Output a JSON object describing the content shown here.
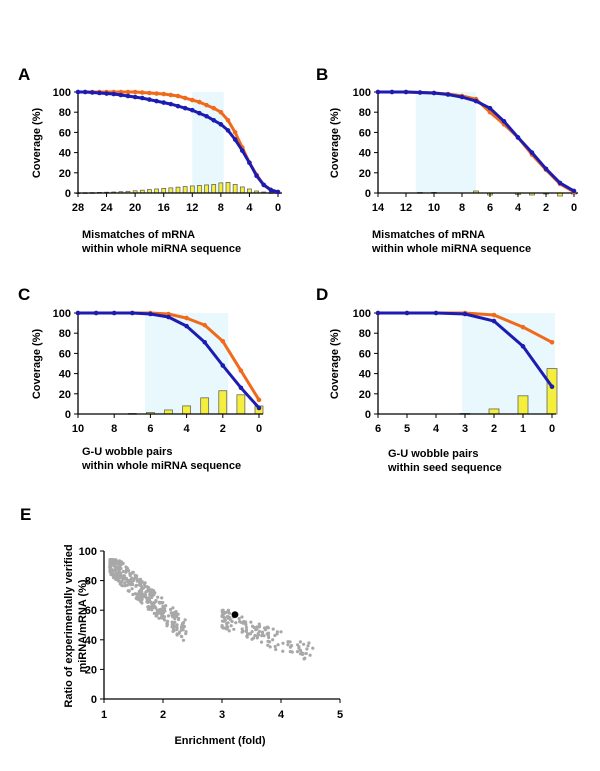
{
  "colors": {
    "shade": "#e8f8fc",
    "orange": "#f06a1c",
    "blue": "#1c1cb2",
    "bar": "#f4ee3c",
    "bar_border": "#555555",
    "scatter": "#a8a8a8",
    "highlight": "#000000"
  },
  "chart_data": [
    {
      "panel": "A",
      "type": "line",
      "ylabel": "Coverage (%)",
      "xlabel_lines": [
        "Mismatches of mRNA",
        "within whole miRNA sequence"
      ],
      "xlim": [
        28,
        0
      ],
      "ylim": [
        0,
        100
      ],
      "x_ticks": [
        28,
        24,
        20,
        16,
        12,
        8,
        4,
        0
      ],
      "y_ticks": [
        0,
        20,
        40,
        60,
        80,
        100
      ],
      "shaded_x": [
        12,
        7.6
      ],
      "series": [
        {
          "name": "orange",
          "color_key": "orange",
          "x": [
            28,
            27,
            26,
            25,
            24,
            23,
            22,
            21,
            20,
            19,
            18,
            17,
            16,
            15,
            14,
            13,
            12,
            11,
            10,
            9,
            8,
            7,
            6,
            5,
            4,
            3,
            2,
            1,
            0
          ],
          "y": [
            100,
            100,
            100,
            100,
            100,
            100,
            100,
            100,
            100,
            99.5,
            99,
            98.5,
            98,
            97,
            96,
            94,
            92,
            90,
            87,
            84,
            80,
            72,
            60,
            45,
            30,
            18,
            8,
            3,
            1
          ]
        },
        {
          "name": "blue",
          "color_key": "blue",
          "x": [
            28,
            27,
            26,
            25,
            24,
            23,
            22,
            21,
            20,
            19,
            18,
            17,
            16,
            15,
            14,
            13,
            12,
            11,
            10,
            9,
            8,
            7,
            6,
            5,
            4,
            3,
            2,
            1,
            0
          ],
          "y": [
            100,
            100,
            99.5,
            99,
            98.5,
            98,
            97,
            96,
            95,
            94,
            92.5,
            91,
            89.5,
            88,
            86,
            84,
            82,
            79,
            76,
            72,
            68,
            62,
            53,
            42,
            30,
            17,
            8,
            3,
            1
          ]
        }
      ],
      "bars": {
        "x": [
          28,
          27,
          26,
          25,
          24,
          23,
          22,
          21,
          20,
          19,
          18,
          17,
          16,
          15,
          14,
          13,
          12,
          11,
          10,
          9,
          8,
          7,
          6,
          5,
          4,
          3,
          2,
          1,
          0
        ],
        "y": [
          0.2,
          0.3,
          0.4,
          0.6,
          0.8,
          1,
          1.3,
          1.7,
          2.2,
          2.8,
          3.4,
          4,
          4.6,
          5.1,
          5.8,
          6.4,
          7,
          7.5,
          8,
          8.5,
          10,
          10.5,
          8.5,
          6,
          4,
          2,
          1,
          0.4,
          0.2
        ]
      }
    },
    {
      "panel": "B",
      "type": "line",
      "ylabel": "Coverage (%)",
      "xlabel_lines": [
        "Mismatches of mRNA",
        "within whole miRNA sequence"
      ],
      "xlim": [
        14,
        0
      ],
      "ylim": [
        0,
        100
      ],
      "x_ticks": [
        14,
        12,
        10,
        8,
        6,
        4,
        2,
        0
      ],
      "y_ticks": [
        0,
        20,
        40,
        60,
        80,
        100
      ],
      "shaded_x": [
        11.3,
        7
      ],
      "series": [
        {
          "name": "orange",
          "color_key": "orange",
          "x": [
            14,
            13,
            12,
            11,
            10,
            9,
            8,
            7,
            6,
            5,
            4,
            3,
            2,
            1,
            0
          ],
          "y": [
            100,
            100,
            100,
            99.5,
            99,
            98,
            96,
            93,
            80,
            68,
            55,
            38,
            23,
            9,
            1
          ]
        },
        {
          "name": "blue",
          "color_key": "blue",
          "x": [
            14,
            13,
            12,
            11,
            10,
            9,
            8,
            7,
            6,
            5,
            4,
            3,
            2,
            1,
            0
          ],
          "y": [
            100,
            100,
            100,
            99.5,
            99,
            97.5,
            95,
            91,
            84,
            71,
            55,
            40,
            24,
            10,
            2
          ]
        }
      ],
      "bars": {
        "x": [
          11,
          10,
          7,
          6,
          4,
          3,
          2,
          1,
          0
        ],
        "y": [
          0.5,
          0.6,
          2,
          -2,
          -1.5,
          -2,
          -1,
          -3,
          -1
        ]
      }
    },
    {
      "panel": "C",
      "type": "line",
      "ylabel": "Coverage (%)",
      "xlabel_lines": [
        "G-U wobble pairs",
        "within whole miRNA sequence"
      ],
      "xlim": [
        10,
        0
      ],
      "ylim": [
        0,
        100
      ],
      "x_ticks": [
        10,
        8,
        6,
        4,
        2,
        0
      ],
      "y_ticks": [
        0,
        20,
        40,
        60,
        80,
        100
      ],
      "shaded_x": [
        6.3,
        1.7
      ],
      "series": [
        {
          "name": "orange",
          "color_key": "orange",
          "x": [
            10,
            9,
            8,
            7,
            6,
            5,
            4,
            3,
            2,
            1,
            0
          ],
          "y": [
            100,
            100,
            100,
            100,
            100,
            99,
            95,
            88,
            72,
            43,
            14
          ]
        },
        {
          "name": "blue",
          "color_key": "blue",
          "x": [
            10,
            9,
            8,
            7,
            6,
            5,
            4,
            3,
            2,
            1,
            0
          ],
          "y": [
            100,
            100,
            100,
            100,
            99,
            96,
            87,
            71,
            48,
            26,
            6
          ]
        }
      ],
      "bars": {
        "x": [
          10,
          9,
          8,
          7,
          6,
          5,
          4,
          3,
          2,
          1,
          0
        ],
        "y": [
          0,
          0,
          0,
          0.5,
          1.5,
          4,
          8,
          16,
          23,
          19,
          8
        ]
      }
    },
    {
      "panel": "D",
      "type": "line",
      "ylabel": "Coverage (%)",
      "xlabel_lines": [
        "G-U wobble pairs",
        "within seed sequence"
      ],
      "xlim": [
        6,
        0
      ],
      "ylim": [
        0,
        100
      ],
      "x_ticks": [
        6,
        5,
        4,
        3,
        2,
        1,
        0
      ],
      "y_ticks": [
        0,
        20,
        40,
        60,
        80,
        100
      ],
      "shaded_x": [
        3.1,
        -0.1
      ],
      "series": [
        {
          "name": "orange",
          "color_key": "orange",
          "x": [
            6,
            5,
            4,
            3,
            2,
            1,
            0
          ],
          "y": [
            100,
            100,
            100,
            100,
            98,
            86,
            71
          ]
        },
        {
          "name": "blue",
          "color_key": "blue",
          "x": [
            6,
            5,
            4,
            3,
            2,
            1,
            0
          ],
          "y": [
            100,
            100,
            100,
            99,
            92,
            67,
            27
          ]
        }
      ],
      "bars": {
        "x": [
          3,
          2,
          1,
          0
        ],
        "y": [
          0.5,
          5,
          18,
          45
        ]
      }
    },
    {
      "panel": "E",
      "type": "scatter",
      "ylabel_lines": [
        "Ratio of experimentally verified",
        "miRNA/mRNA (%)"
      ],
      "xlabel": "Enrichment (fold)",
      "xlim": [
        1,
        5
      ],
      "ylim": [
        0,
        100
      ],
      "x_ticks": [
        1,
        2,
        3,
        4,
        5
      ],
      "y_ticks": [
        0,
        20,
        40,
        60,
        80,
        100
      ],
      "clusters": [
        {
          "x_range": [
            1.1,
            2.4
          ],
          "n": 380,
          "y_start": 92,
          "y_slope": -36,
          "spread": 16
        },
        {
          "x_range": [
            3.0,
            4.55
          ],
          "n": 140,
          "y_start": 55,
          "y_slope": -16,
          "spread": 14
        }
      ],
      "highlight": {
        "x": 3.22,
        "y": 57
      }
    }
  ]
}
